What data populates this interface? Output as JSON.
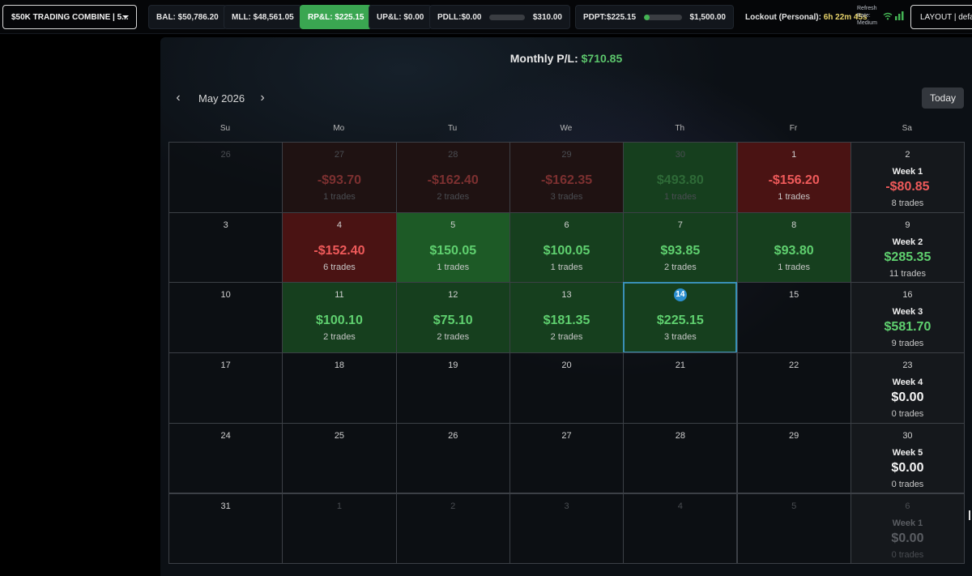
{
  "topbar": {
    "account_label": "$50K TRADING COMBINE | 5...",
    "bal": "BAL: $50,786.20",
    "mll": "MLL: $48,561.05",
    "rpl": "RP&L: $225.15",
    "upl": "UP&L: $0.00",
    "pdll_label": "PDLL:$0.00",
    "pdll_value": "$310.00",
    "pdll_progress": 0,
    "pdpt_label": "PDPT:$225.15",
    "pdpt_value": "$1,500.00",
    "pdpt_progress": 0.15,
    "lockout_label": "Lockout (Personal):",
    "lockout_time": "6h 22m 45s",
    "refresh_line1": "Refresh",
    "refresh_line2": "Rate:",
    "refresh_line3": "Medium",
    "layout_label": "LAYOUT | defau"
  },
  "calendar": {
    "monthly_label": "Monthly P/L:",
    "monthly_value": "$710.85",
    "month": "May 2026",
    "today_label": "Today",
    "dow": [
      "Su",
      "Mo",
      "Tu",
      "We",
      "Th",
      "Fr",
      "Sa"
    ],
    "weeks": [
      [
        {
          "day": "26",
          "dim": true
        },
        {
          "day": "27",
          "dim": true,
          "pnl": "-$93.70",
          "trades": "1 trades",
          "sign": "neg"
        },
        {
          "day": "28",
          "dim": true,
          "pnl": "-$162.40",
          "trades": "2 trades",
          "sign": "neg"
        },
        {
          "day": "29",
          "dim": true,
          "pnl": "-$162.35",
          "trades": "3 trades",
          "sign": "neg"
        },
        {
          "day": "30",
          "dim": true,
          "pnl": "$493.80",
          "trades": "1 trades",
          "sign": "pos"
        },
        {
          "day": "1",
          "pnl": "-$156.20",
          "trades": "1 trades",
          "sign": "neg"
        },
        {
          "day": "2",
          "week": "Week 1",
          "pnl": "-$80.85",
          "trades": "8 trades",
          "sign": "neg"
        }
      ],
      [
        {
          "day": "3"
        },
        {
          "day": "4",
          "pnl": "-$152.40",
          "trades": "6 trades",
          "sign": "neg"
        },
        {
          "day": "5",
          "pnl": "$150.05",
          "trades": "1 trades",
          "sign": "pos",
          "strong": true
        },
        {
          "day": "6",
          "pnl": "$100.05",
          "trades": "1 trades",
          "sign": "pos"
        },
        {
          "day": "7",
          "pnl": "$93.85",
          "trades": "2 trades",
          "sign": "pos"
        },
        {
          "day": "8",
          "pnl": "$93.80",
          "trades": "1 trades",
          "sign": "pos"
        },
        {
          "day": "9",
          "week": "Week 2",
          "pnl": "$285.35",
          "trades": "11 trades",
          "sign": "pos"
        }
      ],
      [
        {
          "day": "10"
        },
        {
          "day": "11",
          "pnl": "$100.10",
          "trades": "2 trades",
          "sign": "pos"
        },
        {
          "day": "12",
          "pnl": "$75.10",
          "trades": "2 trades",
          "sign": "pos"
        },
        {
          "day": "13",
          "pnl": "$181.35",
          "trades": "2 trades",
          "sign": "pos"
        },
        {
          "day": "14",
          "pnl": "$225.15",
          "trades": "3 trades",
          "sign": "pos",
          "today": true
        },
        {
          "day": "15"
        },
        {
          "day": "16",
          "week": "Week 3",
          "pnl": "$581.70",
          "trades": "9 trades",
          "sign": "pos"
        }
      ],
      [
        {
          "day": "17"
        },
        {
          "day": "18"
        },
        {
          "day": "19"
        },
        {
          "day": "20"
        },
        {
          "day": "21"
        },
        {
          "day": "22"
        },
        {
          "day": "23",
          "week": "Week 4",
          "pnl": "$0.00",
          "trades": "0 trades",
          "sign": "zero"
        }
      ],
      [
        {
          "day": "24"
        },
        {
          "day": "25"
        },
        {
          "day": "26"
        },
        {
          "day": "27"
        },
        {
          "day": "28"
        },
        {
          "day": "29"
        },
        {
          "day": "30",
          "week": "Week 5",
          "pnl": "$0.00",
          "trades": "0 trades",
          "sign": "zero"
        }
      ],
      [
        {
          "day": "31"
        },
        {
          "day": "1",
          "dim": true
        },
        {
          "day": "2",
          "dim": true
        },
        {
          "day": "3",
          "dim": true
        },
        {
          "day": "4",
          "dim": true
        },
        {
          "day": "5",
          "dim": true
        },
        {
          "day": "6",
          "dim": true,
          "week": "Week 1",
          "pnl": "$0.00",
          "trades": "0 trades",
          "sign": "zero"
        }
      ]
    ]
  }
}
